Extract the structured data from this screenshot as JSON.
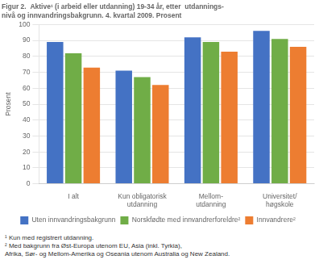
{
  "chart_data": {
    "type": "bar",
    "title": [
      "Figur 2.  Aktive¹ (i arbeid eller utdanning) 19-34 år, etter  utdannings-",
      "nivå og innvandringsbakgrunn. 4. kvartal 2009. Prosent"
    ],
    "ylabel": "Prosent",
    "categories": [
      "I alt",
      "Kun obligatorisk\nutdanning",
      "Mellom-\nutdanning",
      "Universitet/\nhøgskole"
    ],
    "series": [
      {
        "name": "Uten innvandringsbakgrunn",
        "color": "#4472C4",
        "values": [
          89,
          71,
          92,
          96
        ]
      },
      {
        "name": "Norskfødte med innvandrerforeldre²",
        "color": "#70AD47",
        "values": [
          82,
          67,
          89,
          91
        ]
      },
      {
        "name": "Innvandrere²",
        "color": "#ED7D31",
        "values": [
          73,
          62,
          83,
          86
        ]
      }
    ],
    "ylim": [
      0,
      100
    ],
    "yticks": [
      0,
      10,
      20,
      30,
      40,
      50,
      60,
      70,
      80,
      90,
      100
    ],
    "grid": "y",
    "legend": "bottom",
    "annotations": [
      "¹ Kun med registrert utdanning.",
      "² Med bakgrunn fra Øst-Europa utenom EU, Asia (inkl. Tyrkia),",
      "Afrika, Sør- og Mellom-Amerika og Oseania utenom Australia og New Zealand."
    ]
  }
}
